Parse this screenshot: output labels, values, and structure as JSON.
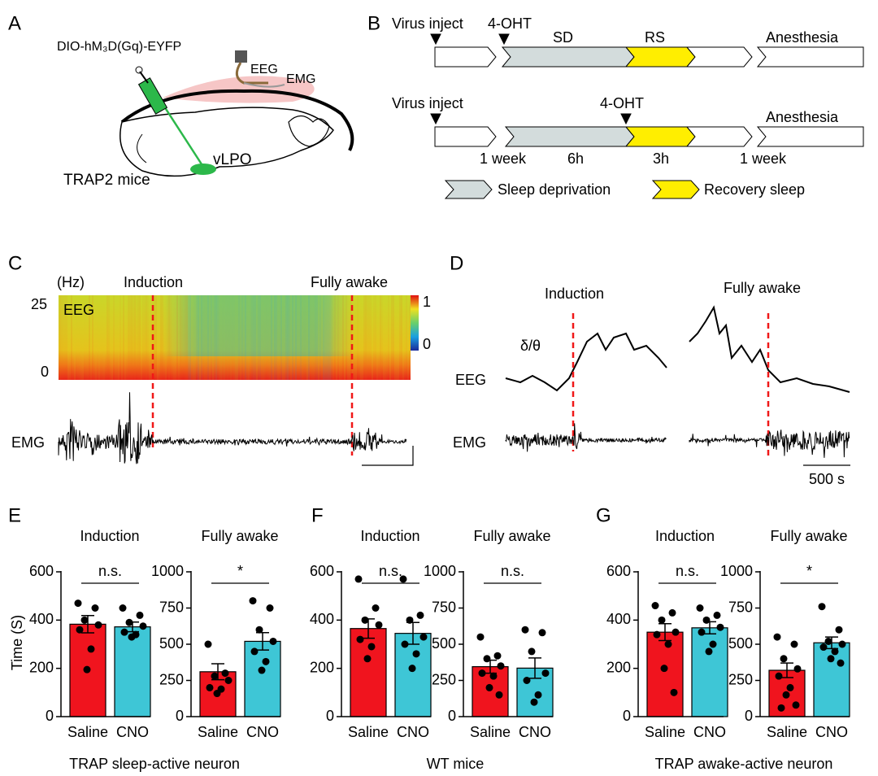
{
  "panel_labels": [
    "A",
    "B",
    "C",
    "D",
    "E",
    "F",
    "G"
  ],
  "panel_a": {
    "construct": "DIO-hM₃D(Gq)-EYFP",
    "eeg": "EEG",
    "emg": "EMG",
    "region": "vLPO",
    "mouse": "TRAP2 mice"
  },
  "panel_b": {
    "row1": {
      "virus": "Virus inject",
      "oht": "4-OHT",
      "sd": "SD",
      "rs": "RS",
      "end": "Anesthesia"
    },
    "row2": {
      "virus": "Virus inject",
      "oht": "4-OHT",
      "end": "Anesthesia",
      "durations": [
        "1 week",
        "6h",
        "3h",
        "1 week"
      ]
    },
    "legend": [
      "Sleep deprivation",
      "Recovery  sleep"
    ]
  },
  "panel_c": {
    "unit": "(Hz)",
    "events": [
      "Induction",
      "Fully awake"
    ],
    "freq_ticks": [
      "25",
      "0"
    ],
    "signal": "EEG",
    "colorbar": [
      "1",
      "0"
    ],
    "emg": "EMG"
  },
  "panel_d": {
    "events": [
      "Induction",
      "Fully awake"
    ],
    "ratio": "δ/θ",
    "eeg": "EEG",
    "emg": "EMG",
    "scale": "500 s"
  },
  "groups": [
    "TRAP sleep-active neuron",
    "WT mice",
    "TRAP awake-active neuron"
  ],
  "chart_data": [
    {
      "type": "bar",
      "title": "Induction",
      "ylabel": "Time (S)",
      "categories": [
        "Saline",
        "CNO"
      ],
      "colors": [
        "#f0141e",
        "#3ec6d6"
      ],
      "values": [
        383,
        372
      ],
      "errors": [
        36,
        20
      ],
      "points": [
        [
          470,
          450,
          400,
          380,
          360,
          280,
          195
        ],
        [
          450,
          420,
          390,
          375,
          350,
          340,
          330
        ]
      ],
      "ylim": [
        0,
        600
      ],
      "yticks": [
        0,
        200,
        400,
        600
      ],
      "annotation": "n.s."
    },
    {
      "type": "bar",
      "title": "Fully awake",
      "categories": [
        "Saline",
        "CNO"
      ],
      "colors": [
        "#f0141e",
        "#3ec6d6"
      ],
      "values": [
        310,
        520
      ],
      "errors": [
        55,
        60
      ],
      "points": [
        [
          500,
          300,
          280,
          250,
          200,
          190,
          160
        ],
        [
          800,
          750,
          600,
          520,
          450,
          380,
          320
        ]
      ],
      "ylim": [
        0,
        1000
      ],
      "yticks": [
        0,
        250,
        500,
        750,
        1000
      ],
      "annotation": "*"
    },
    {
      "type": "bar",
      "title": "Induction",
      "categories": [
        "Saline",
        "CNO"
      ],
      "colors": [
        "#f0141e",
        "#3ec6d6"
      ],
      "values": [
        365,
        345
      ],
      "errors": [
        40,
        45
      ],
      "points": [
        [
          570,
          450,
          400,
          380,
          320,
          290,
          240
        ],
        [
          570,
          420,
          400,
          330,
          300,
          260,
          200
        ]
      ],
      "ylim": [
        0,
        600
      ],
      "yticks": [
        0,
        200,
        400,
        600
      ],
      "annotation": "n.s."
    },
    {
      "type": "bar",
      "title": "Fully awake",
      "categories": [
        "Saline",
        "CNO"
      ],
      "colors": [
        "#f0141e",
        "#3ec6d6"
      ],
      "values": [
        345,
        335
      ],
      "errors": [
        45,
        70
      ],
      "points": [
        [
          550,
          420,
          400,
          350,
          300,
          280,
          200,
          150
        ],
        [
          600,
          580,
          450,
          300,
          250,
          150,
          100
        ]
      ],
      "ylim": [
        0,
        1000
      ],
      "yticks": [
        0,
        250,
        500,
        750,
        1000
      ],
      "annotation": "n.s."
    },
    {
      "type": "bar",
      "title": "Induction",
      "categories": [
        "Saline",
        "CNO"
      ],
      "colors": [
        "#f0141e",
        "#3ec6d6"
      ],
      "values": [
        350,
        368
      ],
      "errors": [
        35,
        25
      ],
      "points": [
        [
          460,
          430,
          400,
          350,
          340,
          300,
          200,
          100
        ],
        [
          450,
          420,
          400,
          370,
          350,
          300,
          270
        ]
      ],
      "ylim": [
        0,
        600
      ],
      "yticks": [
        0,
        200,
        400,
        600
      ],
      "annotation": "n.s."
    },
    {
      "type": "bar",
      "title": "Fully awake",
      "categories": [
        "Saline",
        "CNO"
      ],
      "colors": [
        "#f0141e",
        "#3ec6d6"
      ],
      "values": [
        320,
        510
      ],
      "errors": [
        50,
        40
      ],
      "points": [
        [
          550,
          500,
          400,
          330,
          280,
          200,
          150,
          80,
          60
        ],
        [
          760,
          600,
          520,
          500,
          480,
          450,
          400,
          370
        ]
      ],
      "ylim": [
        0,
        1000
      ],
      "yticks": [
        0,
        250,
        500,
        750,
        1000
      ],
      "annotation": "*"
    }
  ]
}
